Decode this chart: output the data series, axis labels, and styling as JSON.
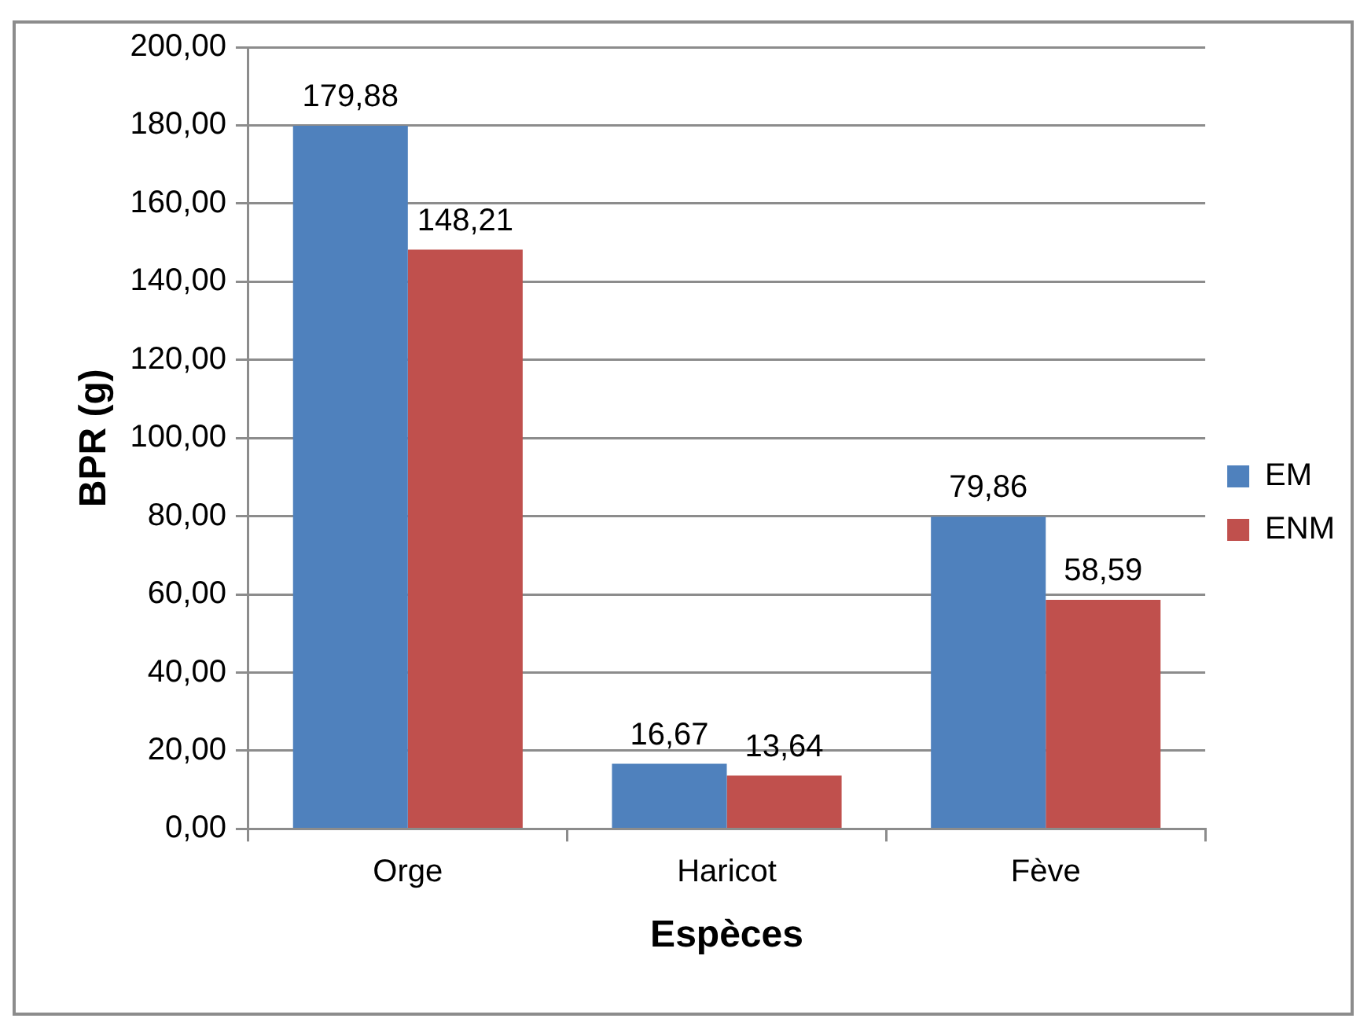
{
  "chart_data": {
    "type": "bar",
    "xlabel": "Espèces",
    "ylabel": "BPR (g)",
    "categories": [
      "Orge",
      "Haricot",
      "Fève"
    ],
    "series": [
      {
        "name": "EM",
        "color": "#4f81bd",
        "values": [
          179.88,
          16.67,
          79.86
        ],
        "value_labels": [
          "179,88",
          "16,67",
          "79,86"
        ]
      },
      {
        "name": "ENM",
        "color": "#c0504d",
        "values": [
          148.21,
          13.64,
          58.59
        ],
        "value_labels": [
          "148,21",
          "13,64",
          "58,59"
        ]
      }
    ],
    "ylim": [
      0,
      200
    ],
    "yticks": [
      {
        "value": 0,
        "label": "0,00"
      },
      {
        "value": 20,
        "label": "20,00"
      },
      {
        "value": 40,
        "label": "40,00"
      },
      {
        "value": 60,
        "label": "60,00"
      },
      {
        "value": 80,
        "label": "80,00"
      },
      {
        "value": 100,
        "label": "100,00"
      },
      {
        "value": 120,
        "label": "120,00"
      },
      {
        "value": 140,
        "label": "140,00"
      },
      {
        "value": 160,
        "label": "160,00"
      },
      {
        "value": 180,
        "label": "180,00"
      },
      {
        "value": 200,
        "label": "200,00"
      }
    ],
    "grid": "y",
    "legend": "right"
  }
}
